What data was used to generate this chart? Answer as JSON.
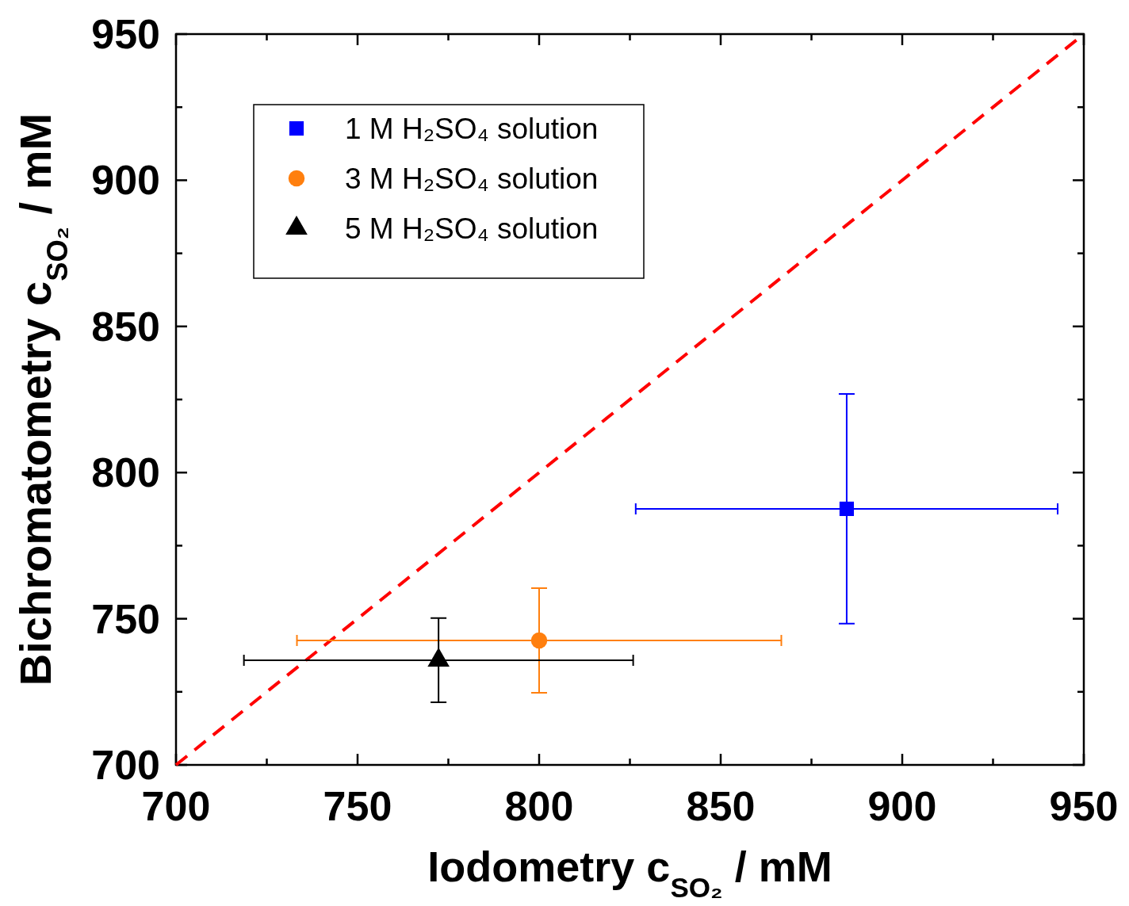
{
  "chart_data": {
    "type": "scatter",
    "xlabel": "Iodometry c$_{SO₂}$ / mM",
    "ylabel": "Bichromatometry c$_{SO₂}$ / mM",
    "xlim": [
      700,
      950
    ],
    "ylim": [
      700,
      950
    ],
    "xticks": [
      700,
      {
        "value": 725,
        "label": null
      },
      750,
      {
        "value": 775,
        "label": null
      },
      800,
      {
        "value": 825,
        "label": null
      },
      850,
      {
        "value": 875,
        "label": null
      },
      900,
      {
        "value": 925,
        "label": null
      },
      950
    ],
    "yticks": [
      700,
      {
        "value": 725,
        "label": null
      },
      750,
      {
        "value": 775,
        "label": null
      },
      800,
      {
        "value": 825,
        "label": null
      },
      850,
      {
        "value": 875,
        "label": null
      },
      900,
      {
        "value": 925,
        "label": null
      },
      950
    ],
    "legend": "top left",
    "grid": false,
    "series": [
      {
        "type": "line",
        "color": "#ff0000",
        "line_style": "dashed",
        "marker": "none",
        "x": [
          700,
          950
        ],
        "values": [
          700,
          950
        ]
      },
      {
        "name": "1 M H₂SO₄ solution",
        "color": "#0000ff",
        "marker": "square",
        "x": [
          884.7
        ],
        "values": [
          787.6
        ],
        "xerrors": [
          58.1
        ],
        "errors": [
          39.3
        ]
      },
      {
        "name": "3 M H₂SO₄ solution",
        "color": "#ff7f0e",
        "marker": "circle",
        "x": [
          800
        ],
        "values": [
          742.6
        ],
        "xerrors": [
          66.7
        ],
        "errors": [
          17.9
        ]
      },
      {
        "name": "5 M H₂SO₄ solution",
        "color": "#000000",
        "marker": "triangle",
        "x": [
          772.3
        ],
        "values": [
          735.8
        ],
        "xerrors": [
          53.6
        ],
        "errors": [
          14.4
        ]
      }
    ]
  }
}
